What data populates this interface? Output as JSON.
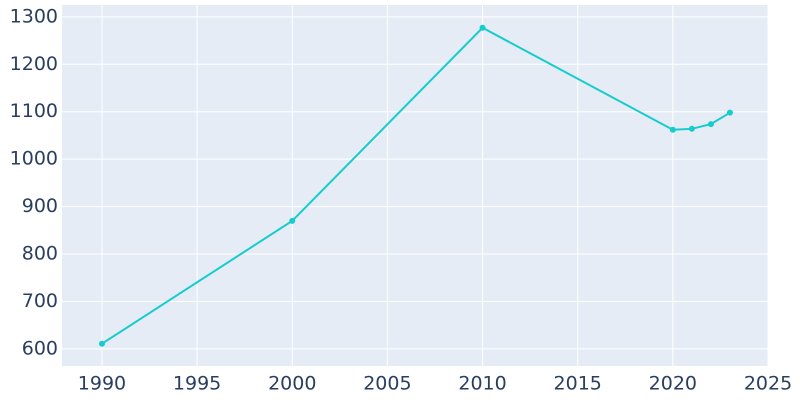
{
  "chart_data": {
    "type": "line",
    "x": [
      1990,
      2000,
      2010,
      2020,
      2021,
      2022,
      2023
    ],
    "series": [
      {
        "color": "#17cccc",
        "values": [
          611,
          870,
          1277,
          1062,
          1064,
          1074,
          1098
        ]
      }
    ],
    "xlim": [
      1987.9,
      2025
    ],
    "xticks": [
      1990,
      1995,
      2000,
      2005,
      2010,
      2015,
      2020,
      2025
    ],
    "ylim": [
      564,
      1325
    ],
    "yticks": [
      600,
      700,
      800,
      900,
      1000,
      1100,
      1200,
      1300
    ],
    "grid": true
  }
}
